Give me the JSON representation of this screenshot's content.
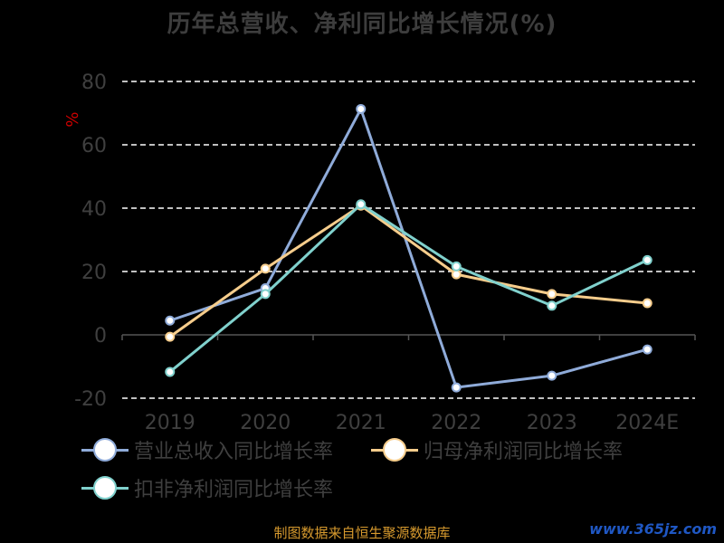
{
  "title": "历年总营收、净利同比增长情况(%)",
  "source": "制图数据来自恒生聚源数据库",
  "watermark": "www.365jz.com",
  "colors": {
    "background": "#000000",
    "grid": "#ffffff",
    "axis": "#555555",
    "tick_text": "#3f3f3f",
    "unit_text": "#cc0000"
  },
  "chart_data": {
    "type": "line",
    "title": "历年总营收、净利同比增长情况(%)",
    "ylabel": "%",
    "categories": [
      "2019",
      "2020",
      "2021",
      "2022",
      "2023",
      "2024E"
    ],
    "ylim": [
      -20,
      80
    ],
    "yticks": [
      80,
      60,
      40,
      20,
      0,
      -20
    ],
    "grid": true,
    "legend_position": "bottom",
    "series": [
      {
        "name": "营业总收入同比增长率",
        "color": "#8fabd9",
        "values": [
          4.5,
          14.7,
          71.3,
          -16.6,
          -12.9,
          -4.6
        ]
      },
      {
        "name": "归母净利润同比增长率",
        "color": "#f6cd8c",
        "values": [
          -0.6,
          20.9,
          40.8,
          19.1,
          12.9,
          10.0
        ]
      },
      {
        "name": "扣非净利润同比增长率",
        "color": "#80d1cd",
        "values": [
          -11.7,
          12.9,
          41.2,
          21.6,
          9.2,
          23.6
        ]
      }
    ]
  }
}
